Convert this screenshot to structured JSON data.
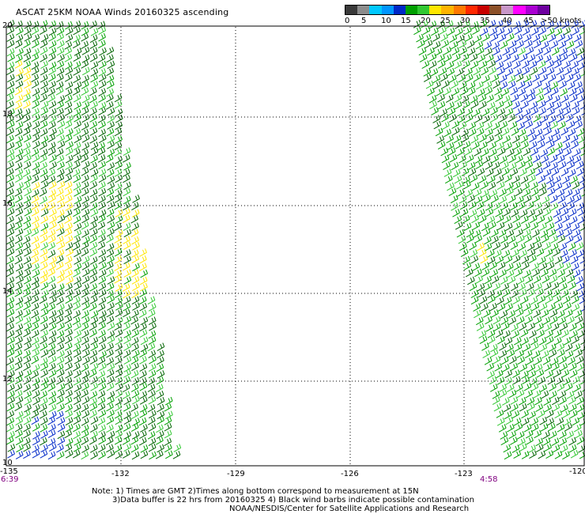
{
  "title": "ASCAT 25KM NOAA Winds 20160325 ascending",
  "legend": {
    "unit_label": "knots",
    "labels": [
      "0",
      "5",
      "10",
      "15",
      "20",
      "25",
      "30",
      "35",
      "40",
      "45",
      ">50"
    ],
    "colors": [
      "#3a3a3a",
      "#8c8c8c",
      "#00c8ff",
      "#0096ff",
      "#0028c8",
      "#00a000",
      "#32c832",
      "#ffe600",
      "#ffb400",
      "#ff7800",
      "#ff2800",
      "#c80000",
      "#8c5028",
      "#c896c8",
      "#ff00ff",
      "#aa00d2",
      "#6e00a0"
    ]
  },
  "map": {
    "lat_labels": [
      "20",
      "18",
      "16",
      "14",
      "12",
      "10"
    ],
    "lon_labels": [
      "-135",
      "-132",
      "-129",
      "-126",
      "-123",
      "-120"
    ],
    "time_labels": [
      "6:39",
      "4:58"
    ]
  },
  "notes": {
    "line1": "Note: 1) Times are GMT 2)Times along bottom correspond to measurement at 15N",
    "line2": "3)Data buffer is 22 hrs from 20160325 4) Black wind barbs indicate possible contamination",
    "line3": "NOAA/NESDIS/Center for Satellite Applications and Research"
  },
  "barb_colors": {
    "dark_green": "#006400",
    "green": "#00a000",
    "light_green": "#32c832",
    "yellow": "#ffe600",
    "blue": "#0028c8"
  }
}
